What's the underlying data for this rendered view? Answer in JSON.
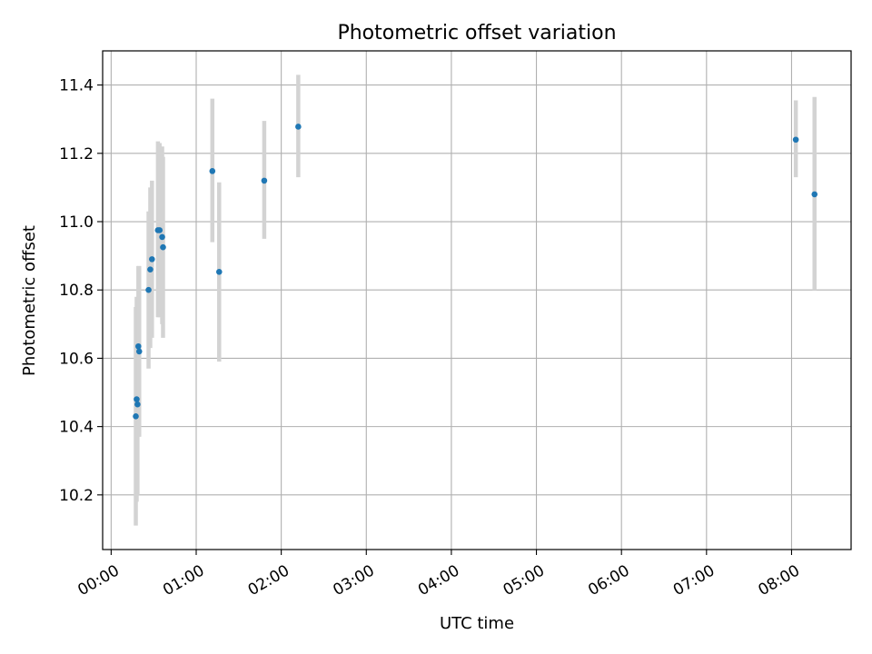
{
  "chart_data": {
    "type": "scatter",
    "title": "Photometric offset variation",
    "xlabel": "UTC time",
    "ylabel": "Photometric offset",
    "x_unit": "hours",
    "xlim": [
      -0.1,
      8.7
    ],
    "ylim": [
      10.04,
      11.5
    ],
    "grid": true,
    "x_ticks": [
      {
        "value": 0,
        "label": "00:00"
      },
      {
        "value": 1,
        "label": "01:00"
      },
      {
        "value": 2,
        "label": "02:00"
      },
      {
        "value": 3,
        "label": "03:00"
      },
      {
        "value": 4,
        "label": "04:00"
      },
      {
        "value": 5,
        "label": "05:00"
      },
      {
        "value": 6,
        "label": "06:00"
      },
      {
        "value": 7,
        "label": "07:00"
      },
      {
        "value": 8,
        "label": "08:00"
      }
    ],
    "y_ticks": [
      {
        "value": 10.2,
        "label": "10.2"
      },
      {
        "value": 10.4,
        "label": "10.4"
      },
      {
        "value": 10.6,
        "label": "10.6"
      },
      {
        "value": 10.8,
        "label": "10.8"
      },
      {
        "value": 11.0,
        "label": "11.0"
      },
      {
        "value": 11.2,
        "label": "11.2"
      },
      {
        "value": 11.4,
        "label": "11.4"
      }
    ],
    "point_color": "#1f77b4",
    "errorbar_color": "#d3d3d3",
    "points": [
      {
        "x": 0.29,
        "y": 10.43,
        "low": 10.11,
        "high": 10.75
      },
      {
        "x": 0.3,
        "y": 10.48,
        "low": 10.18,
        "high": 10.78
      },
      {
        "x": 0.31,
        "y": 10.465,
        "low": 10.2,
        "high": 10.73
      },
      {
        "x": 0.32,
        "y": 10.635,
        "low": 10.4,
        "high": 10.87
      },
      {
        "x": 0.33,
        "y": 10.62,
        "low": 10.37,
        "high": 10.87
      },
      {
        "x": 0.44,
        "y": 10.8,
        "low": 10.57,
        "high": 11.03
      },
      {
        "x": 0.46,
        "y": 10.86,
        "low": 10.63,
        "high": 11.1
      },
      {
        "x": 0.48,
        "y": 10.89,
        "low": 10.66,
        "high": 11.12
      },
      {
        "x": 0.55,
        "y": 10.975,
        "low": 10.72,
        "high": 11.235
      },
      {
        "x": 0.57,
        "y": 10.975,
        "low": 10.72,
        "high": 11.23
      },
      {
        "x": 0.6,
        "y": 10.955,
        "low": 10.7,
        "high": 11.22
      },
      {
        "x": 0.61,
        "y": 10.925,
        "low": 10.66,
        "high": 11.19
      },
      {
        "x": 1.19,
        "y": 11.148,
        "low": 10.94,
        "high": 11.36
      },
      {
        "x": 1.27,
        "y": 10.853,
        "low": 10.59,
        "high": 11.115
      },
      {
        "x": 1.8,
        "y": 11.12,
        "low": 10.95,
        "high": 11.295
      },
      {
        "x": 2.2,
        "y": 11.278,
        "low": 11.13,
        "high": 11.43
      },
      {
        "x": 8.05,
        "y": 11.24,
        "low": 11.13,
        "high": 11.355
      },
      {
        "x": 8.27,
        "y": 11.08,
        "low": 10.8,
        "high": 11.365
      }
    ]
  }
}
